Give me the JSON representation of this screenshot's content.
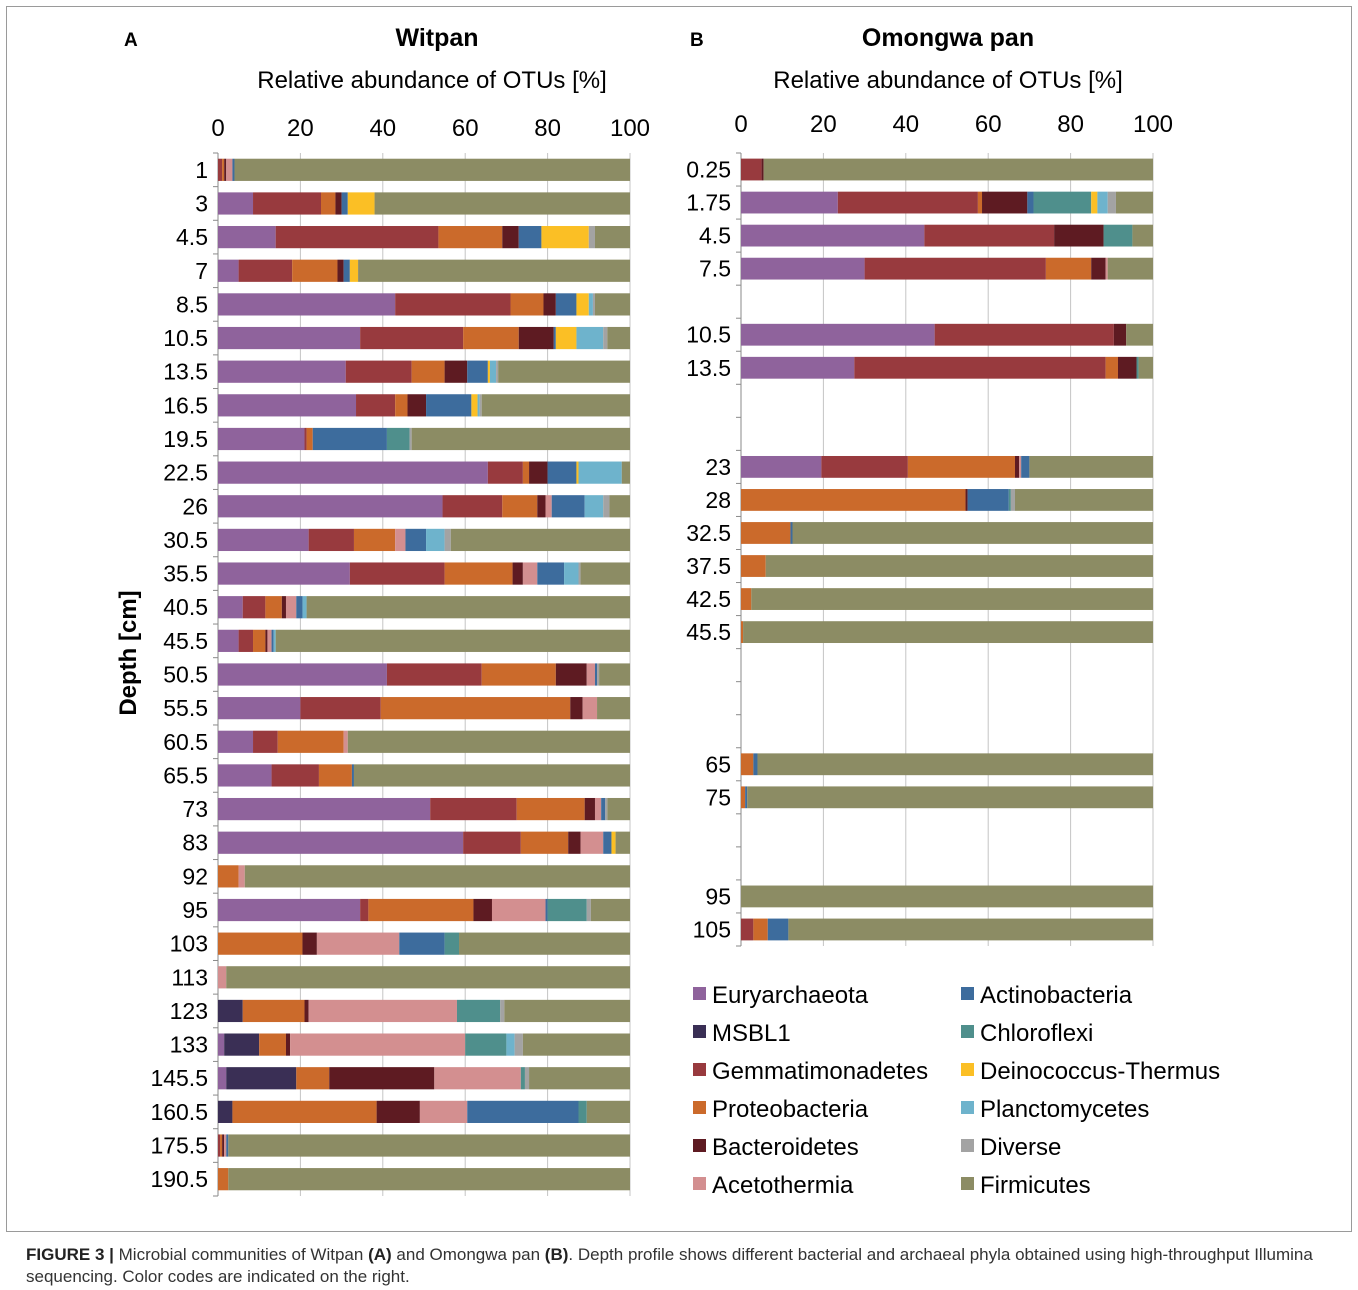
{
  "caption": {
    "label": "FIGURE 3 |",
    "part1": "Microbial communities of Witpan",
    "bold_a": "(A)",
    "part2": "and Omongwa pan",
    "bold_b": "(B)",
    "part3": ". Depth profile shows different bacterial and archaeal phyla obtained using high-throughput Illumina sequencing. Color codes are indicated on the right."
  },
  "legend": {
    "entries": [
      {
        "name": "Euryarchaeota",
        "color": "#8f639c"
      },
      {
        "name": "MSBL1",
        "color": "#3a2f55"
      },
      {
        "name": "Gemmatimonadetes",
        "color": "#983a3e"
      },
      {
        "name": "Proteobacteria",
        "color": "#cb6a2b"
      },
      {
        "name": "Bacteroidetes",
        "color": "#5e1b22"
      },
      {
        "name": "Acetothermia",
        "color": "#d38f90"
      },
      {
        "name": "Actinobacteria",
        "color": "#3d6c9d"
      },
      {
        "name": "Chloroflexi",
        "color": "#4f8f8c"
      },
      {
        "name": "Deinococcus-Thermus",
        "color": "#fbbf25"
      },
      {
        "name": "Planctomycetes",
        "color": "#6eb3cc"
      },
      {
        "name": "Diverse",
        "color": "#a3a3a3"
      },
      {
        "name": "Firmicutes",
        "color": "#8c8c64"
      }
    ]
  },
  "chart_data": [
    {
      "type": "bar",
      "orientation": "horizontal",
      "stacked": true,
      "panel_label": "A",
      "title": "Witpan",
      "xlabel": "Relative abundance of OTUs [%]",
      "ylabel": "Depth [cm]",
      "xlim": [
        0,
        100
      ],
      "xticks": [
        "0",
        "20",
        "40",
        "60",
        "80",
        "100"
      ],
      "grid": true,
      "series_order": [
        "Euryarchaeota",
        "MSBL1",
        "Gemmatimonadetes",
        "Proteobacteria",
        "Bacteroidetes",
        "Acetothermia",
        "Actinobacteria",
        "Chloroflexi",
        "Deinococcus-Thermus",
        "Planctomycetes",
        "Diverse",
        "Firmicutes"
      ],
      "rows": [
        {
          "depth": "1",
          "values": [
            0,
            0,
            1,
            0.5,
            0.5,
            1.5,
            0.5,
            0,
            0,
            0,
            0,
            96
          ]
        },
        {
          "depth": "3",
          "values": [
            8.5,
            0,
            16.5,
            3.5,
            1.5,
            0,
            1.5,
            0,
            6.5,
            0,
            0,
            62
          ]
        },
        {
          "depth": "4.5",
          "values": [
            14,
            0,
            39.5,
            15.5,
            4,
            0,
            5.5,
            0,
            11.5,
            0,
            1.5,
            8.5
          ]
        },
        {
          "depth": "7",
          "values": [
            5,
            0,
            13,
            11,
            1.5,
            0,
            1.5,
            0,
            2,
            0,
            0,
            66
          ]
        },
        {
          "depth": "8.5",
          "values": [
            43,
            0,
            28,
            8,
            3,
            0,
            5,
            0,
            3,
            1,
            0.5,
            8.5
          ]
        },
        {
          "depth": "10.5",
          "values": [
            34.5,
            0,
            25,
            13.5,
            8.5,
            0,
            0.5,
            0,
            5,
            6.5,
            1,
            5.5
          ]
        },
        {
          "depth": "13.5",
          "values": [
            31,
            0,
            16,
            8,
            5.5,
            0,
            5,
            0,
            0.5,
            1.5,
            0.5,
            32
          ]
        },
        {
          "depth": "16.5",
          "values": [
            33.5,
            0,
            9.5,
            3,
            4.5,
            0,
            11,
            0,
            1.5,
            0.5,
            0.5,
            36
          ]
        },
        {
          "depth": "19.5",
          "values": [
            21,
            0,
            0.5,
            1.5,
            0,
            0,
            18,
            5.5,
            0,
            0,
            0.5,
            53
          ]
        },
        {
          "depth": "22.5",
          "values": [
            65.5,
            0,
            8.5,
            1.5,
            4.5,
            0,
            7,
            0,
            0.5,
            10.5,
            0,
            2
          ]
        },
        {
          "depth": "26",
          "values": [
            54.5,
            0,
            14.5,
            8.5,
            2,
            1.5,
            8,
            0,
            0,
            4.5,
            1.5,
            5
          ]
        },
        {
          "depth": "30.5",
          "values": [
            22,
            0,
            11,
            10,
            0,
            2.5,
            5,
            0,
            0,
            4.5,
            1.5,
            43.5
          ]
        },
        {
          "depth": "35.5",
          "values": [
            32,
            0,
            23,
            16.5,
            2.5,
            3.5,
            6.5,
            0,
            0,
            3.5,
            0.5,
            12
          ]
        },
        {
          "depth": "40.5",
          "values": [
            6,
            0,
            5.5,
            4,
            1,
            2.5,
            1.5,
            0,
            0,
            1,
            0,
            78.5
          ]
        },
        {
          "depth": "45.5",
          "values": [
            5,
            0,
            3.5,
            3,
            0.5,
            1,
            0.5,
            0,
            0,
            0.5,
            0,
            86
          ]
        },
        {
          "depth": "50.5",
          "values": [
            41,
            0,
            23,
            18,
            7.5,
            2,
            0.5,
            0,
            0,
            0,
            0.5,
            7.5
          ]
        },
        {
          "depth": "55.5",
          "values": [
            20,
            0,
            19.5,
            46,
            3,
            3.5,
            0,
            0,
            0,
            0,
            0,
            8
          ]
        },
        {
          "depth": "60.5",
          "values": [
            8.5,
            0,
            6,
            16,
            0,
            1,
            0,
            0,
            0,
            0,
            0,
            68.5
          ]
        },
        {
          "depth": "65.5",
          "values": [
            13,
            0,
            11.5,
            8,
            0,
            0,
            0.5,
            0,
            0,
            0,
            0,
            67
          ]
        },
        {
          "depth": "73",
          "values": [
            51.5,
            0,
            21,
            16.5,
            2.5,
            1.5,
            1,
            0,
            0,
            0,
            0.5,
            5.5
          ]
        },
        {
          "depth": "83",
          "values": [
            59.5,
            0,
            14,
            11.5,
            3,
            5.5,
            2,
            0,
            1,
            0,
            0,
            3.5
          ]
        },
        {
          "depth": "92",
          "values": [
            0,
            0,
            0,
            5,
            0,
            1.5,
            0,
            0,
            0,
            0,
            0,
            93.5
          ]
        },
        {
          "depth": "95",
          "values": [
            34.5,
            0,
            2,
            25.5,
            4.5,
            13,
            0.5,
            9.5,
            0,
            0,
            1,
            9.5
          ]
        },
        {
          "depth": "103",
          "values": [
            0,
            0,
            0,
            20.5,
            3.5,
            20,
            11,
            3.5,
            0,
            0,
            0,
            41.5
          ]
        },
        {
          "depth": "113",
          "values": [
            0,
            0,
            0,
            0,
            0,
            2,
            0,
            0,
            0,
            0,
            0,
            98
          ]
        },
        {
          "depth": "123",
          "values": [
            0,
            6,
            0,
            15,
            1,
            36,
            0,
            10.5,
            0,
            0,
            1,
            30.5
          ]
        },
        {
          "depth": "133",
          "values": [
            1.5,
            8.5,
            0,
            6.5,
            1,
            42.5,
            0,
            10,
            0,
            2,
            2,
            26
          ]
        },
        {
          "depth": "145.5",
          "values": [
            2,
            17,
            0,
            8,
            25.5,
            21,
            0,
            1,
            0,
            0,
            1,
            24.5
          ]
        },
        {
          "depth": "160.5",
          "values": [
            0,
            3.5,
            0,
            35,
            10.5,
            11.5,
            27,
            2,
            0,
            0,
            0,
            10.5
          ]
        },
        {
          "depth": "175.5",
          "values": [
            0,
            0,
            0.5,
            0.5,
            0.5,
            0.5,
            0.5,
            0,
            0,
            0,
            0,
            97.5
          ]
        },
        {
          "depth": "190.5",
          "values": [
            0,
            0,
            0,
            2.5,
            0,
            0,
            0,
            0,
            0,
            0,
            0,
            97.5
          ]
        }
      ]
    },
    {
      "type": "bar",
      "orientation": "horizontal",
      "stacked": true,
      "panel_label": "B",
      "title": "Omongwa pan",
      "xlabel": "Relative abundance of OTUs [%]",
      "ylabel": "",
      "xlim": [
        0,
        100
      ],
      "xticks": [
        "0",
        "20",
        "40",
        "60",
        "80",
        "100"
      ],
      "grid": true,
      "series_order": [
        "Euryarchaeota",
        "MSBL1",
        "Gemmatimonadetes",
        "Proteobacteria",
        "Bacteroidetes",
        "Acetothermia",
        "Actinobacteria",
        "Chloroflexi",
        "Deinococcus-Thermus",
        "Planctomycetes",
        "Diverse",
        "Firmicutes"
      ],
      "rows": [
        {
          "depth": "0.25",
          "values": [
            0,
            0,
            5,
            0,
            0.5,
            0,
            0,
            0,
            0,
            0,
            0,
            94.5
          ]
        },
        {
          "depth": "1.75",
          "values": [
            23.5,
            0,
            34,
            1,
            11,
            0,
            1.5,
            14,
            1.5,
            2.5,
            2,
            9
          ]
        },
        {
          "depth": "4.5",
          "values": [
            44.5,
            0,
            31.5,
            0,
            12,
            0,
            0,
            7,
            0,
            0,
            0,
            5
          ]
        },
        {
          "depth": "7.5",
          "values": [
            30,
            0,
            44,
            11,
            3.5,
            0.5,
            0,
            0,
            0,
            0,
            0,
            11
          ]
        },
        {
          "depth": "",
          "values": null
        },
        {
          "depth": "10.5",
          "values": [
            47,
            0,
            43.5,
            0,
            3,
            0,
            0,
            0,
            0,
            0,
            0,
            6.5
          ]
        },
        {
          "depth": "13.5",
          "values": [
            27.5,
            0,
            61,
            3,
            4.5,
            0,
            0,
            0.5,
            0,
            0,
            0,
            3.5
          ]
        },
        {
          "depth": "",
          "values": null
        },
        {
          "depth": "",
          "values": null
        },
        {
          "depth": "23",
          "values": [
            19.5,
            0,
            21,
            26,
            1,
            0.5,
            2,
            0,
            0,
            0,
            0,
            30
          ]
        },
        {
          "depth": "28",
          "values": [
            0,
            0,
            0,
            54.5,
            0.5,
            0,
            10,
            0.5,
            0,
            0,
            1,
            33.5
          ]
        },
        {
          "depth": "32.5",
          "values": [
            0,
            0,
            0,
            12,
            0,
            0,
            0.5,
            0,
            0,
            0,
            0,
            87.5
          ]
        },
        {
          "depth": "37.5",
          "values": [
            0,
            0,
            0,
            6,
            0,
            0,
            0,
            0,
            0,
            0,
            0,
            94
          ]
        },
        {
          "depth": "42.5",
          "values": [
            0,
            0,
            0,
            2.5,
            0,
            0,
            0,
            0,
            0,
            0,
            0,
            97.5
          ]
        },
        {
          "depth": "45.5",
          "values": [
            0,
            0,
            0,
            0.5,
            0,
            0,
            0,
            0,
            0,
            0,
            0,
            99.5
          ]
        },
        {
          "depth": "",
          "values": null
        },
        {
          "depth": "",
          "values": null
        },
        {
          "depth": "",
          "values": null
        },
        {
          "depth": "65",
          "values": [
            0,
            0,
            0,
            3,
            0,
            0,
            1,
            0,
            0,
            0,
            0,
            96
          ]
        },
        {
          "depth": "75",
          "values": [
            0,
            0,
            0,
            1,
            0,
            0,
            0.5,
            0,
            0,
            0,
            0,
            98.5
          ]
        },
        {
          "depth": "",
          "values": null
        },
        {
          "depth": "",
          "values": null
        },
        {
          "depth": "95",
          "values": [
            0,
            0,
            0,
            0,
            0,
            0,
            0,
            0,
            0,
            0,
            0,
            100
          ]
        },
        {
          "depth": "105",
          "values": [
            0,
            0,
            3,
            3.5,
            0,
            0,
            5,
            0,
            0,
            0,
            0,
            88.5
          ]
        }
      ]
    }
  ]
}
